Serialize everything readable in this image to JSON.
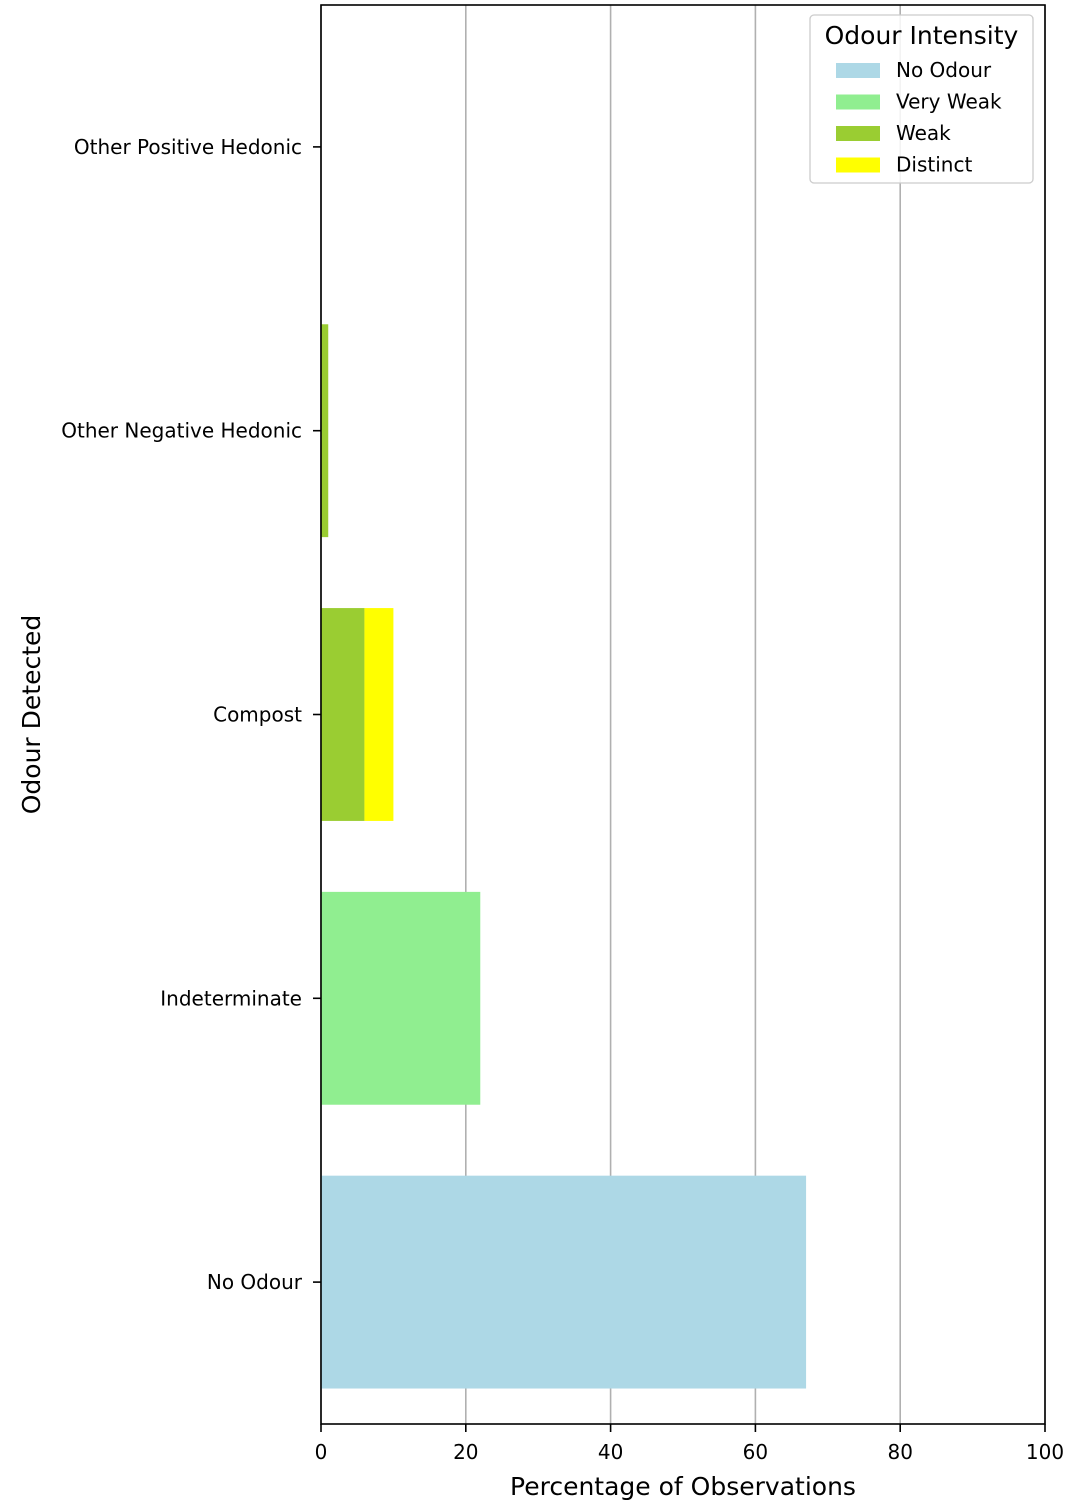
{
  "chart_data": {
    "type": "bar",
    "orientation": "horizontal",
    "stacked": true,
    "categories": [
      "No Odour",
      "Indeterminate",
      "Compost",
      "Other Negative Hedonic",
      "Other Positive Hedonic"
    ],
    "series": [
      {
        "name": "No Odour",
        "color": "#add8e6",
        "values": [
          67,
          0,
          0,
          0,
          0
        ]
      },
      {
        "name": "Very Weak",
        "color": "#90ee90",
        "values": [
          0,
          22,
          0,
          0,
          0
        ]
      },
      {
        "name": "Weak",
        "color": "#9acd32",
        "values": [
          0,
          0,
          6,
          1,
          0
        ]
      },
      {
        "name": "Distinct",
        "color": "#ffff00",
        "values": [
          0,
          0,
          4,
          0,
          0
        ]
      }
    ],
    "title": "",
    "xlabel": "Percentage of Observations",
    "ylabel": "Odour Detected",
    "xlim": [
      0,
      100
    ],
    "xticks": [
      0,
      20,
      40,
      60,
      80,
      100
    ],
    "grid": "x",
    "legend": {
      "title": "Odour Intensity",
      "placement": "top-right"
    }
  }
}
